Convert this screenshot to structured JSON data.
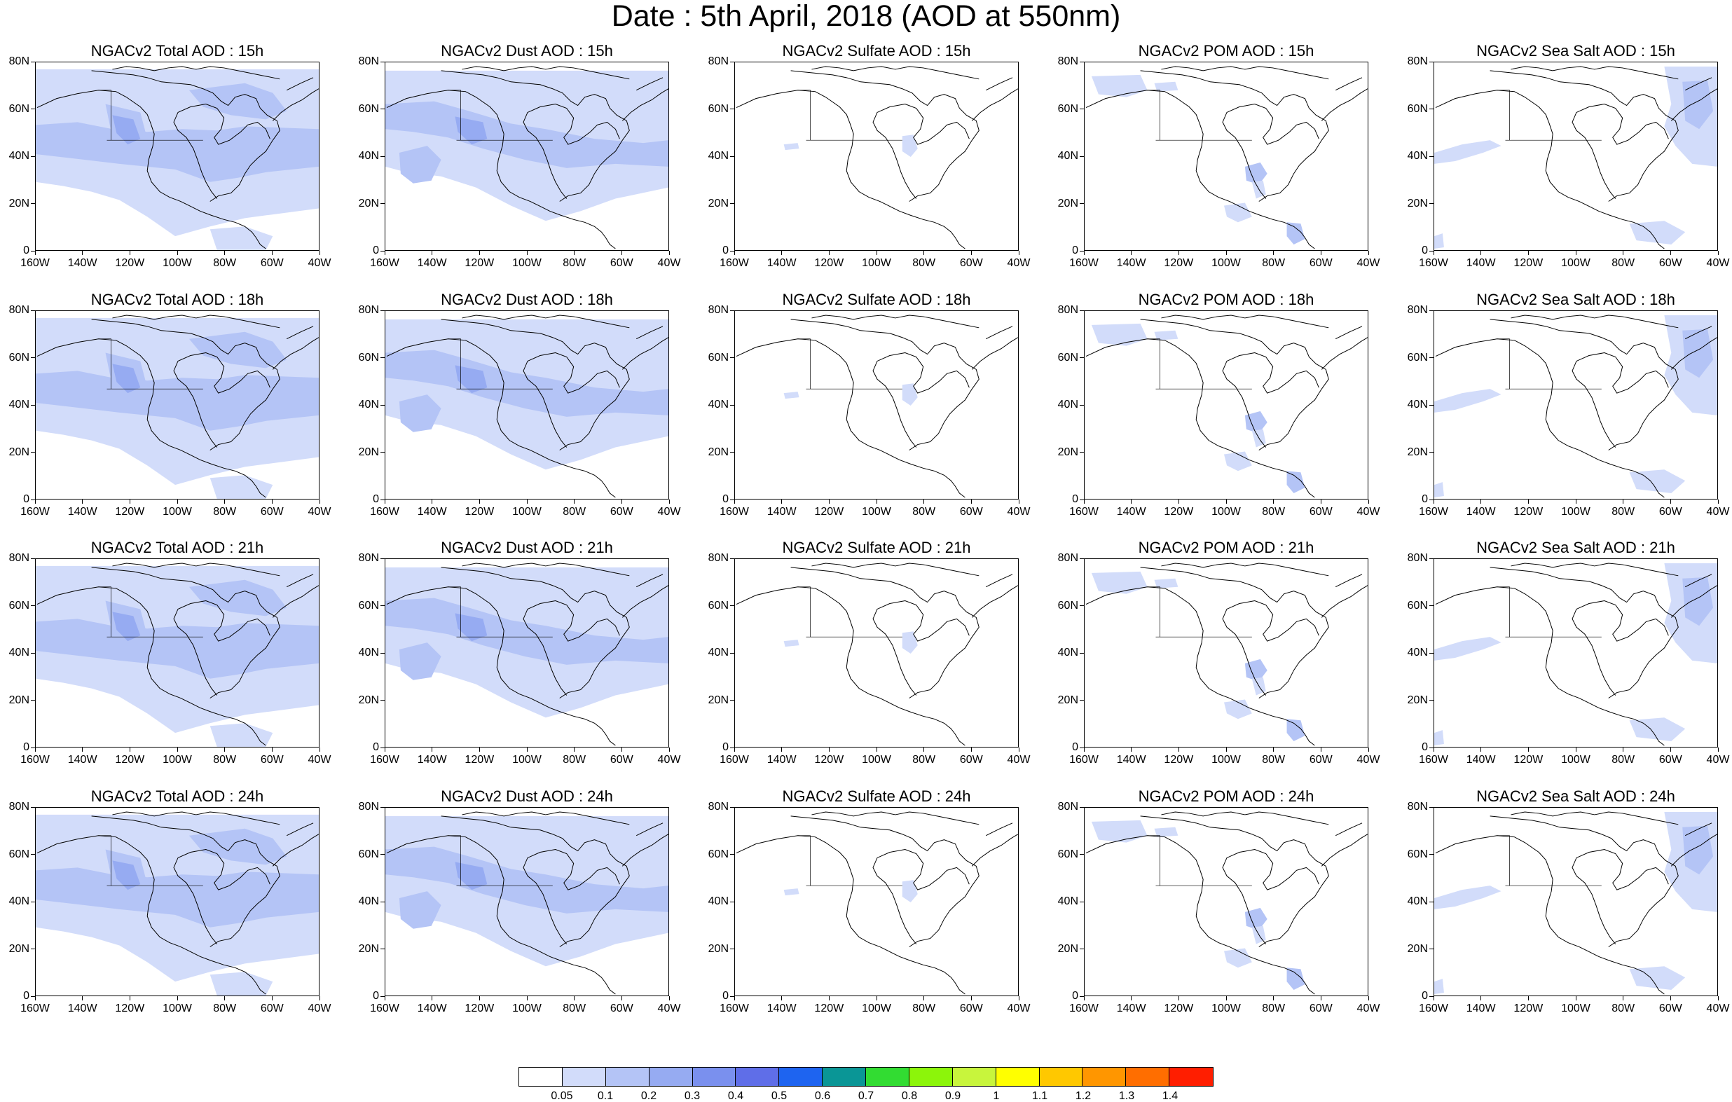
{
  "title": "Date : 5th April, 2018 (AOD at 550nm)",
  "axes": {
    "x_ticks": [
      "160W",
      "140W",
      "120W",
      "100W",
      "80W",
      "60W",
      "40W"
    ],
    "y_ticks": [
      "80N",
      "60N",
      "40N",
      "20N",
      "0"
    ]
  },
  "panels": [
    {
      "title": "NGACv2 Total AOD : 15h",
      "type": "total"
    },
    {
      "title": "NGACv2 Dust AOD : 15h",
      "type": "dust"
    },
    {
      "title": "NGACv2 Sulfate AOD : 15h",
      "type": "sulfate"
    },
    {
      "title": "NGACv2 POM AOD : 15h",
      "type": "pom"
    },
    {
      "title": "NGACv2 Sea Salt AOD : 15h",
      "type": "seasalt"
    },
    {
      "title": "NGACv2 Total AOD : 18h",
      "type": "total"
    },
    {
      "title": "NGACv2 Dust AOD : 18h",
      "type": "dust"
    },
    {
      "title": "NGACv2 Sulfate AOD : 18h",
      "type": "sulfate"
    },
    {
      "title": "NGACv2 POM AOD : 18h",
      "type": "pom"
    },
    {
      "title": "NGACv2 Sea Salt AOD : 18h",
      "type": "seasalt"
    },
    {
      "title": "NGACv2 Total AOD : 21h",
      "type": "total"
    },
    {
      "title": "NGACv2 Dust AOD : 21h",
      "type": "dust"
    },
    {
      "title": "NGACv2 Sulfate AOD : 21h",
      "type": "sulfate"
    },
    {
      "title": "NGACv2 POM AOD : 21h",
      "type": "pom"
    },
    {
      "title": "NGACv2 Sea Salt AOD : 21h",
      "type": "seasalt"
    },
    {
      "title": "NGACv2 Total AOD : 24h",
      "type": "total"
    },
    {
      "title": "NGACv2 Dust AOD : 24h",
      "type": "dust"
    },
    {
      "title": "NGACv2 Sulfate AOD : 24h",
      "type": "sulfate"
    },
    {
      "title": "NGACv2 POM AOD : 24h",
      "type": "pom"
    },
    {
      "title": "NGACv2 Sea Salt  AOD : 24h",
      "type": "seasalt"
    }
  ],
  "colorbar": {
    "labels": [
      "0.05",
      "0.1",
      "0.2",
      "0.3",
      "0.4",
      "0.5",
      "0.6",
      "0.7",
      "0.8",
      "0.9",
      "1",
      "1.1",
      "1.2",
      "1.3",
      "1.4"
    ],
    "colors": [
      "#ffffff",
      "#d2dcfa",
      "#b4c4f6",
      "#96abf2",
      "#7a90ee",
      "#5f6ee8",
      "#1e64f0",
      "#0a9696",
      "#32dc32",
      "#8cf50a",
      "#c8f53c",
      "#ffff00",
      "#ffc800",
      "#ff9600",
      "#ff6e00",
      "#ff1e00"
    ]
  },
  "plume_colors": {
    "light": "#d2dcfa",
    "medium": "#b4c4f6",
    "dark": "#96abf2"
  }
}
